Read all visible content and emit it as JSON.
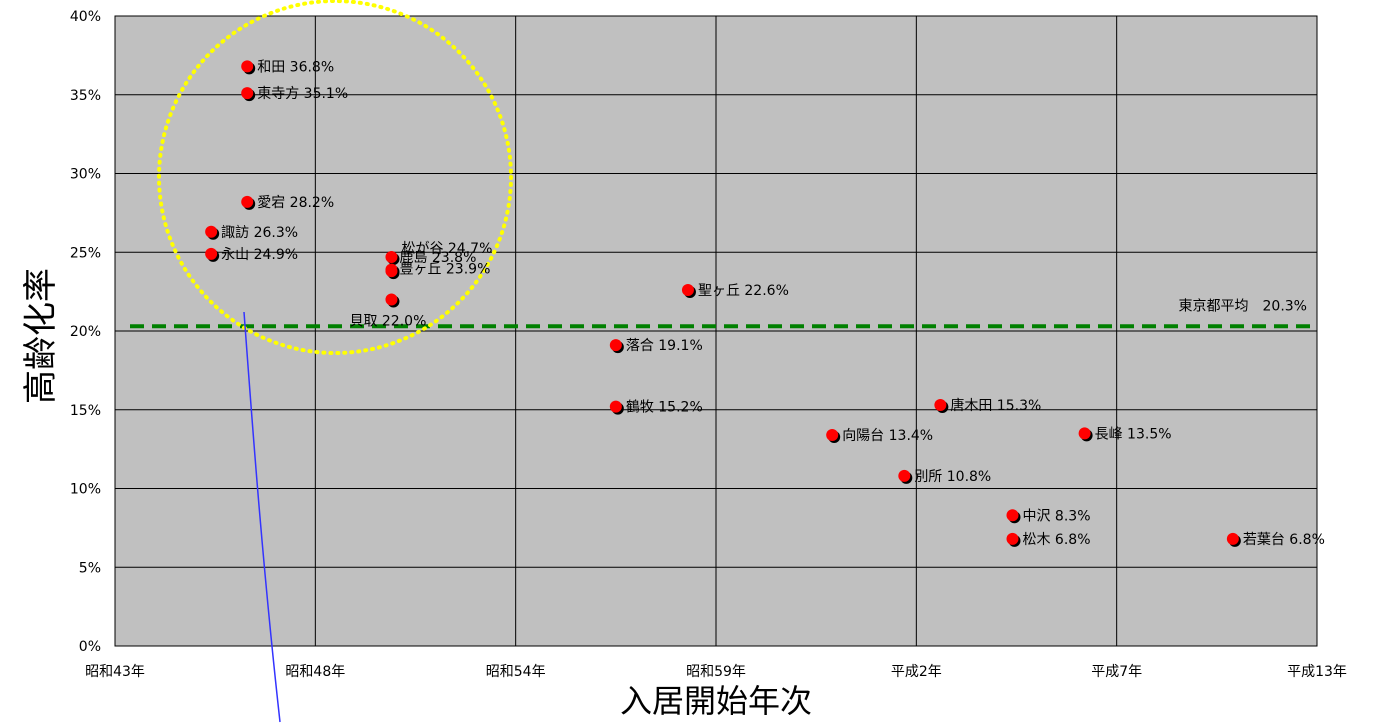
{
  "chart_data": {
    "type": "scatter",
    "ylabel": "高齢化率",
    "xlabel": "入居開始年次",
    "x_ticks": [
      "昭和43年",
      "昭和48年",
      "昭和54年",
      "昭和59年",
      "平成2年",
      "平成7年",
      "平成13年"
    ],
    "ylim": [
      0,
      40
    ],
    "y_ticks": [
      "0%",
      "5%",
      "10%",
      "15%",
      "20%",
      "25%",
      "30%",
      "35%",
      "40%"
    ],
    "grid": true,
    "plot_background": "#c0c0c0",
    "point_color": "#ff0000",
    "points": [
      {
        "name": "和田",
        "label": "和田 36.8%",
        "x": 3.3,
        "y": 36.8
      },
      {
        "name": "東寺方",
        "label": "東寺方 35.1%",
        "x": 3.3,
        "y": 35.1
      },
      {
        "name": "愛宕",
        "label": "愛宕 28.2%",
        "x": 3.3,
        "y": 28.2
      },
      {
        "name": "諏訪",
        "label": "諏訪 26.3%",
        "x": 2.4,
        "y": 26.3
      },
      {
        "name": "永山",
        "label": "永山 24.9%",
        "x": 2.4,
        "y": 24.9
      },
      {
        "name": "松が谷",
        "label": "松が谷 24.7%",
        "x": 6.9,
        "y": 24.7
      },
      {
        "name": "豊ヶ丘",
        "label": "豊ヶ丘 23.9%",
        "x": 6.9,
        "y": 23.9
      },
      {
        "name": "鹿島",
        "label": "鹿島 23.8%",
        "x": 6.9,
        "y": 23.8
      },
      {
        "name": "貝取",
        "label": "貝取 22.0%",
        "x": 6.9,
        "y": 22.0
      },
      {
        "name": "聖ヶ丘",
        "label": "聖ヶ丘 22.6%",
        "x": 14.3,
        "y": 22.6
      },
      {
        "name": "落合",
        "label": "落合 19.1%",
        "x": 12.5,
        "y": 19.1
      },
      {
        "name": "鶴牧",
        "label": "鶴牧 15.2%",
        "x": 12.5,
        "y": 15.2
      },
      {
        "name": "向陽台",
        "label": "向陽台 13.4%",
        "x": 17.9,
        "y": 13.4
      },
      {
        "name": "唐木田",
        "label": "唐木田 15.3%",
        "x": 20.6,
        "y": 15.3
      },
      {
        "name": "別所",
        "label": "別所 10.8%",
        "x": 19.7,
        "y": 10.8
      },
      {
        "name": "長峰",
        "label": "長峰 13.5%",
        "x": 24.2,
        "y": 13.5
      },
      {
        "name": "中沢",
        "label": "中沢 8.3%",
        "x": 22.4,
        "y": 8.3
      },
      {
        "name": "松木",
        "label": "松木 6.8%",
        "x": 22.4,
        "y": 6.8
      },
      {
        "name": "若葉台",
        "label": "若葉台 6.8%",
        "x": 27.9,
        "y": 6.8
      }
    ],
    "reference_line": {
      "label": "東京都平均　20.3%",
      "y": 20.3,
      "color": "#008000",
      "style": "dashed"
    },
    "highlight_circle": {
      "color": "#ffff00",
      "style": "dotted"
    }
  }
}
